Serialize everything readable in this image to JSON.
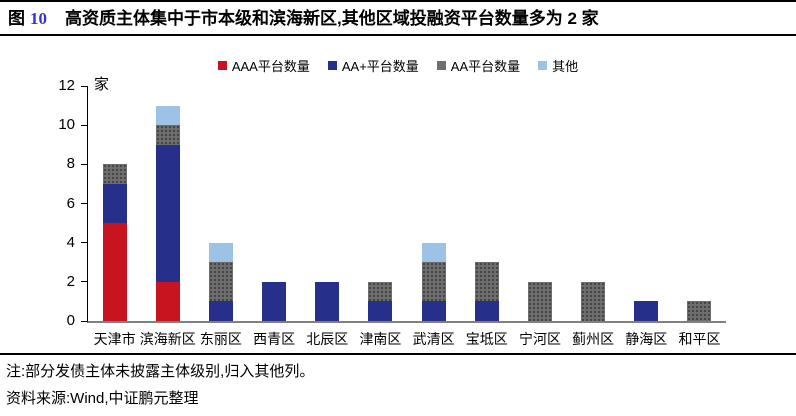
{
  "figure": {
    "label_prefix": "图",
    "number": "10",
    "number_color": "#3333CC",
    "title": "高资质主体集中于市本级和滨海新区,其他区域投融资平台数量多为 2 家"
  },
  "notes": {
    "note": "注:部分发债主体未披露主体级别,归入其他列。",
    "source": "资料来源:Wind,中证鹏元整理"
  },
  "colors": {
    "aaa_red": "#C8141E",
    "aa_plus_navy": "#26308A",
    "aa_gray": "#6E6E6E",
    "other_light_blue": "#9CC2E6",
    "x_axis_line": "#808080",
    "y_axis_line": "#000000"
  },
  "chart_data": {
    "type": "bar",
    "stacked": true,
    "title": "",
    "unit_label": "家",
    "xlabel": "",
    "ylabel": "家",
    "ylim": [
      0,
      12
    ],
    "yticks": [
      0,
      2,
      4,
      6,
      8,
      10,
      12
    ],
    "grid": false,
    "legend_position": "top-center",
    "categories": [
      "天津市",
      "滨海新区",
      "东丽区",
      "西青区",
      "北辰区",
      "津南区",
      "武清区",
      "宝坻区",
      "宁河区",
      "蓟州区",
      "静海区",
      "和平区"
    ],
    "series": [
      {
        "name": "AAA平台数量",
        "color": "#C8141E",
        "textured": false,
        "values": [
          5,
          2,
          0,
          0,
          0,
          0,
          0,
          0,
          0,
          0,
          0,
          0
        ]
      },
      {
        "name": "AA+平台数量",
        "color": "#26308A",
        "textured": false,
        "values": [
          2,
          7,
          1,
          2,
          2,
          1,
          1,
          1,
          0,
          0,
          1,
          0
        ]
      },
      {
        "name": "AA平台数量",
        "color": "#6E6E6E",
        "textured": true,
        "values": [
          1,
          1,
          2,
          0,
          0,
          1,
          2,
          2,
          2,
          2,
          0,
          1
        ]
      },
      {
        "name": "其他",
        "color": "#9CC2E6",
        "textured": false,
        "values": [
          0,
          1,
          1,
          0,
          0,
          0,
          1,
          0,
          0,
          0,
          0,
          0
        ]
      }
    ],
    "totals": [
      8,
      11,
      4,
      2,
      2,
      2,
      4,
      3,
      2,
      2,
      1,
      1
    ]
  }
}
